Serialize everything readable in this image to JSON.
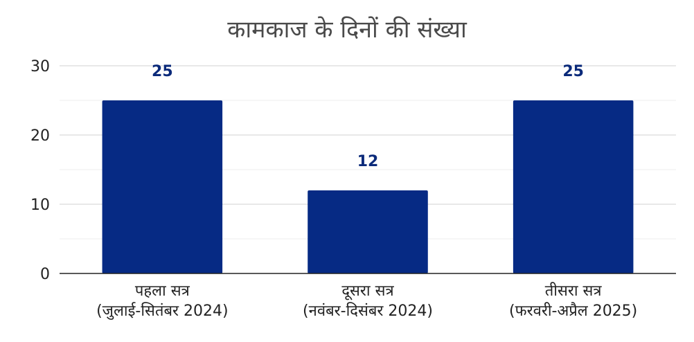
{
  "chart_data": {
    "type": "bar",
    "title": "कामकाज के दिनों की संख्या",
    "xlabel": "",
    "ylabel": "",
    "categories": [
      [
        "पहला सत्र",
        "(जुलाई-सितंबर 2024)"
      ],
      [
        "दूसरा सत्र",
        "(नवंबर-दिसंबर 2024)"
      ],
      [
        "तीसरा सत्र",
        "(फरवरी-अप्रैल 2025)"
      ]
    ],
    "values": [
      25,
      12,
      25
    ],
    "data_labels": [
      "25",
      "12",
      "25"
    ],
    "ylim": [
      0,
      30
    ],
    "yticks": [
      "0",
      "10",
      "20",
      "30"
    ],
    "grid": true,
    "legend": "none",
    "colors": {
      "bar": "#062a84",
      "data_label": "#0b2a7a",
      "gridline": "#d0d0d0",
      "axis": "#222222"
    }
  }
}
